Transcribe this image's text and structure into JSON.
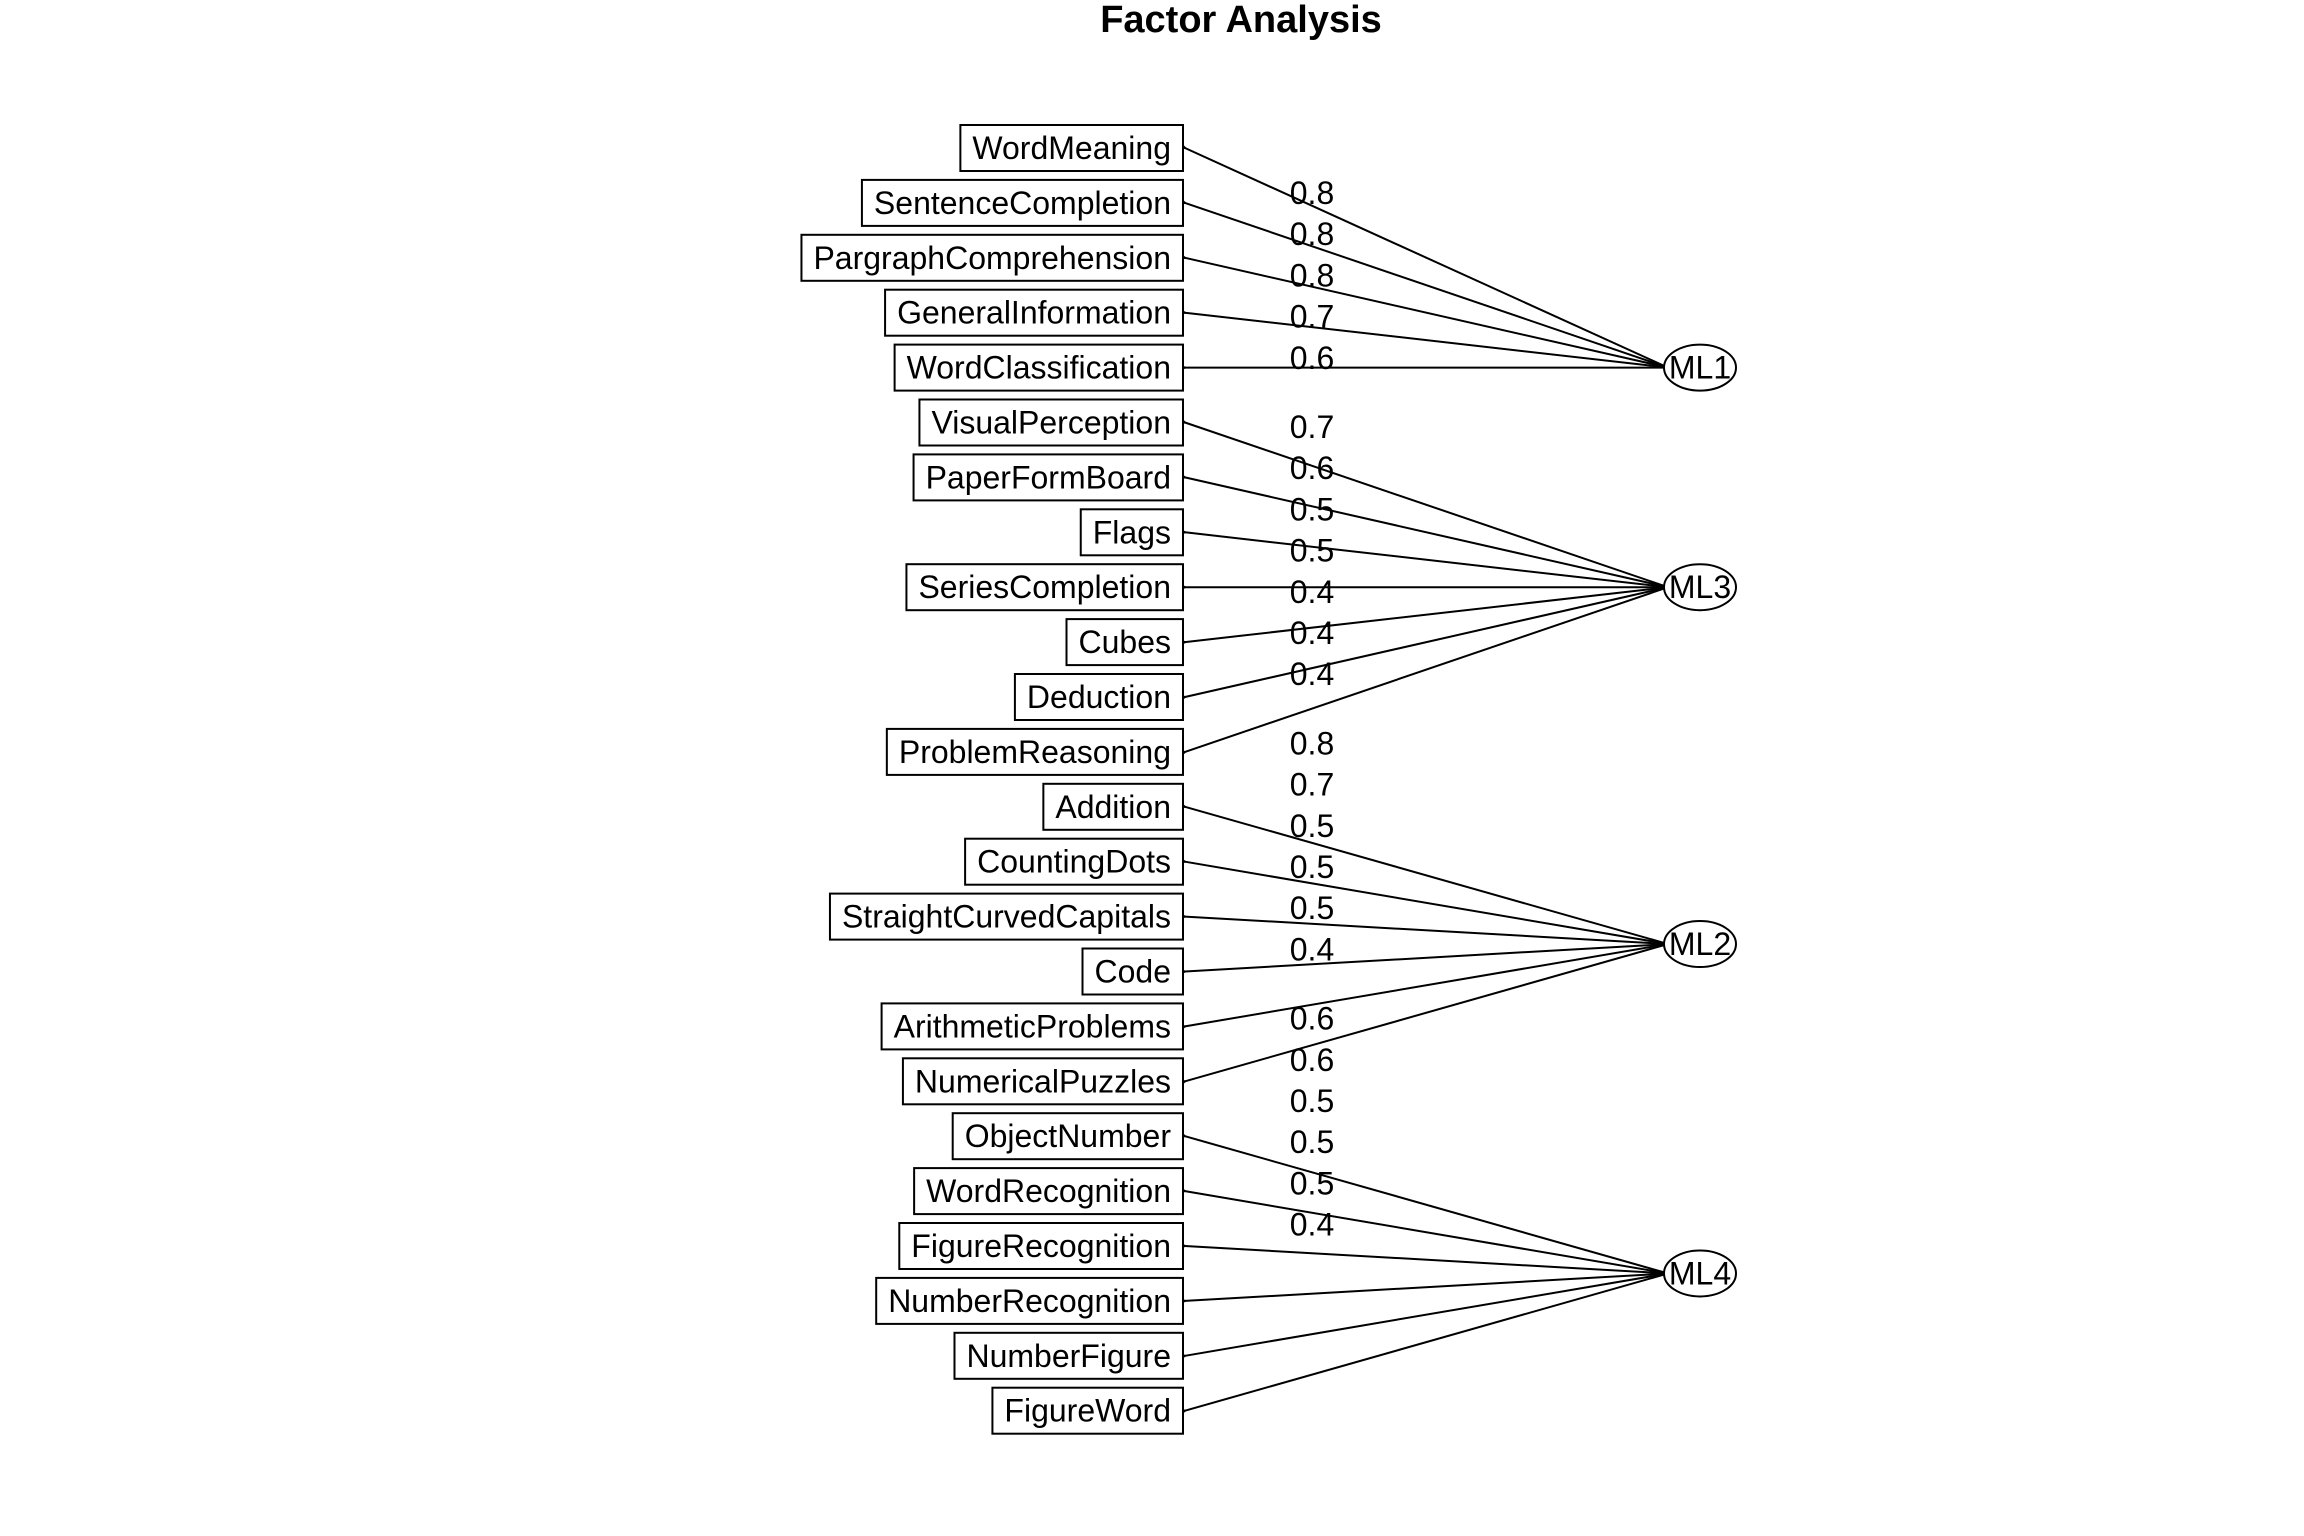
{
  "diagram": {
    "title": "Factor Analysis",
    "colors": {
      "ink": "#000000",
      "background": "#ffffff"
    },
    "factors": [
      {
        "name": "ML1",
        "paths": [
          {
            "variable": "WordMeaning",
            "loading": "0.8"
          },
          {
            "variable": "SentenceCompletion",
            "loading": "0.8"
          },
          {
            "variable": "PargraphComprehension",
            "loading": "0.8"
          },
          {
            "variable": "GeneralInformation",
            "loading": "0.7"
          },
          {
            "variable": "WordClassification",
            "loading": "0.6"
          }
        ]
      },
      {
        "name": "ML3",
        "paths": [
          {
            "variable": "VisualPerception",
            "loading": "0.7"
          },
          {
            "variable": "PaperFormBoard",
            "loading": "0.6"
          },
          {
            "variable": "Flags",
            "loading": "0.5"
          },
          {
            "variable": "SeriesCompletion",
            "loading": "0.5"
          },
          {
            "variable": "Cubes",
            "loading": "0.4"
          },
          {
            "variable": "Deduction",
            "loading": "0.4"
          },
          {
            "variable": "ProblemReasoning",
            "loading": "0.4"
          }
        ]
      },
      {
        "name": "ML2",
        "paths": [
          {
            "variable": "Addition",
            "loading": "0.8"
          },
          {
            "variable": "CountingDots",
            "loading": "0.7"
          },
          {
            "variable": "StraightCurvedCapitals",
            "loading": "0.5"
          },
          {
            "variable": "Code",
            "loading": "0.5"
          },
          {
            "variable": "ArithmeticProblems",
            "loading": "0.5"
          },
          {
            "variable": "NumericalPuzzles",
            "loading": "0.4"
          }
        ]
      },
      {
        "name": "ML4",
        "paths": [
          {
            "variable": "ObjectNumber",
            "loading": "0.6"
          },
          {
            "variable": "WordRecognition",
            "loading": "0.6"
          },
          {
            "variable": "FigureRecognition",
            "loading": "0.5"
          },
          {
            "variable": "NumberRecognition",
            "loading": "0.5"
          },
          {
            "variable": "NumberFigure",
            "loading": "0.5"
          },
          {
            "variable": "FigureWord",
            "loading": "0.4"
          }
        ]
      }
    ]
  }
}
